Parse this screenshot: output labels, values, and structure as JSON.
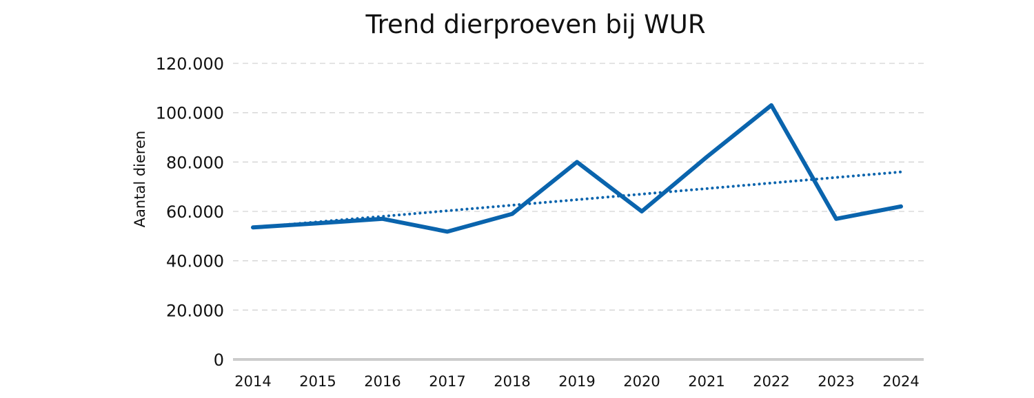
{
  "chart_data": {
    "type": "line",
    "title": "Trend dierproeven bij WUR",
    "xlabel": "",
    "ylabel": "Aantal dieren",
    "categories": [
      "2014",
      "2015",
      "2016",
      "2017",
      "2018",
      "2019",
      "2020",
      "2021",
      "2022",
      "2023",
      "2024"
    ],
    "ylim": [
      0,
      120000
    ],
    "yticks": [
      0,
      20000,
      40000,
      60000,
      80000,
      100000,
      120000
    ],
    "ytick_labels": [
      "0",
      "20.000",
      "40.000",
      "60.000",
      "80.000",
      "100.000",
      "120.000"
    ],
    "grid": "horizontal dashed",
    "legend": "none",
    "series": [
      {
        "values": [
          53500,
          55200,
          57000,
          51800,
          59000,
          80000,
          60000,
          82000,
          103000,
          57000,
          62000
        ],
        "color": "#0a64ad",
        "style": "solid"
      },
      {
        "values": [
          53500,
          55750,
          58000,
          60250,
          62500,
          64750,
          67000,
          69250,
          71500,
          73750,
          76000
        ],
        "color": "#0a64ad",
        "style": "dotted",
        "role": "trendline"
      }
    ]
  }
}
